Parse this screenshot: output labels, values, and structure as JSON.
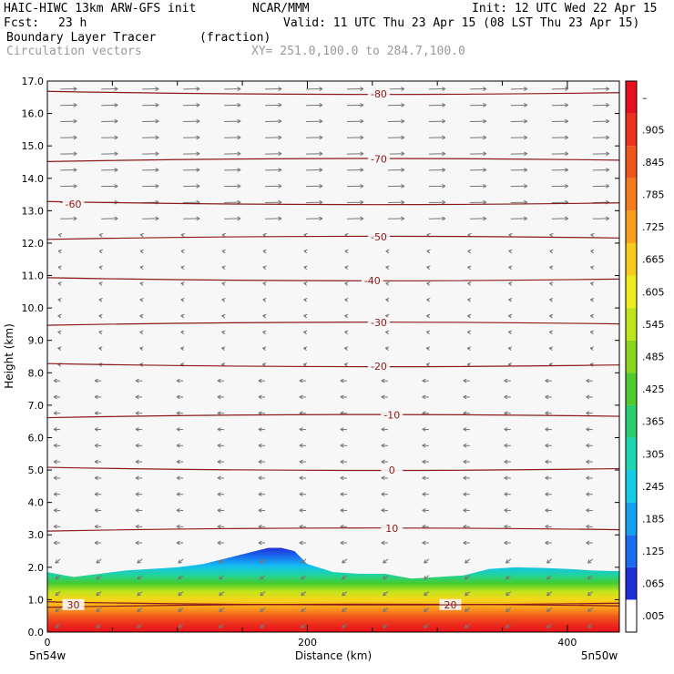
{
  "header": {
    "model": "HAIC-HIWC 13km ARW-GFS init",
    "org": "NCAR/MMM",
    "init": "Init: 12 UTC Wed 22 Apr 15",
    "fcst_label": "Fcst:",
    "fcst_value": "23 h",
    "valid": "Valid: 11 UTC Thu 23 Apr 15 (08 LST Thu 23 Apr 15)",
    "field": "Boundary Layer Tracer",
    "field_units": "(fraction)",
    "overlay": "Circulation vectors",
    "xy": "XY= 251.0,100.0 to 284.7,100.0"
  },
  "colors": {
    "contour": "#8b1a1a",
    "vector": "#777777",
    "text": "#000000",
    "grey_text": "#9a9a9a"
  },
  "chart_data": {
    "type": "heatmap",
    "xlabel": "Distance (km)",
    "ylabel": "Height (km)",
    "xlim": [
      0,
      440
    ],
    "ylim": [
      0,
      17
    ],
    "x_ticks": [
      "0",
      "200",
      "400"
    ],
    "x_tick_values": [
      0,
      200,
      400
    ],
    "x_end_labels": [
      "5n54w",
      "5n50w"
    ],
    "y_ticks": [
      "0.0",
      "1.0",
      "2.0",
      "3.0",
      "4.0",
      "5.0",
      "6.0",
      "7.0",
      "8.0",
      "9.0",
      "10.0",
      "11.0",
      "12.0",
      "13.0",
      "14.0",
      "15.0",
      "16.0",
      "17.0"
    ],
    "colorbar": {
      "labels": [
        ".005",
        ".065",
        ".125",
        ".185",
        ".245",
        ".305",
        ".365",
        ".425",
        ".485",
        ".545",
        ".605",
        ".665",
        ".725",
        ".785",
        ".845",
        ".905",
        "–"
      ],
      "colors": [
        "#ffffff",
        "#2030d8",
        "#1a6cf0",
        "#12a2f0",
        "#14cce6",
        "#1cd6b0",
        "#28cf6c",
        "#4ccb2a",
        "#8ad61c",
        "#c0e41a",
        "#eeec1e",
        "#f8cc1c",
        "#f8a01c",
        "#f47c1c",
        "#f0561c",
        "#ec321c",
        "#e8101c"
      ]
    },
    "temperature_contours": [
      {
        "label": "20",
        "x": 310,
        "y": 0.85
      },
      {
        "label": "30",
        "x": 20,
        "y": 0.85
      },
      {
        "label": "10",
        "x": 265,
        "y": 3.2
      },
      {
        "label": "0",
        "x": 265,
        "y": 5.0
      },
      {
        "label": "-10",
        "x": 265,
        "y": 6.7
      },
      {
        "label": "-20",
        "x": 255,
        "y": 8.2
      },
      {
        "label": "-30",
        "x": 255,
        "y": 9.55
      },
      {
        "label": "-40",
        "x": 250,
        "y": 10.85
      },
      {
        "label": "-50",
        "x": 255,
        "y": 12.2
      },
      {
        "label": "-60",
        "x": 20,
        "y": 13.2
      },
      {
        "label": "-70",
        "x": 255,
        "y": 14.6
      },
      {
        "label": "-80",
        "x": 255,
        "y": 16.6
      }
    ],
    "tracer_top_profile": {
      "x": [
        0,
        20,
        40,
        60,
        80,
        100,
        120,
        140,
        160,
        170,
        180,
        190,
        200,
        220,
        240,
        260,
        280,
        300,
        320,
        340,
        360,
        380,
        400,
        420,
        440
      ],
      "top_km": [
        1.85,
        1.7,
        1.8,
        1.9,
        1.95,
        2.0,
        2.1,
        2.3,
        2.5,
        2.6,
        2.6,
        2.5,
        2.1,
        1.85,
        1.8,
        1.8,
        1.65,
        1.7,
        1.75,
        1.95,
        2.0,
        1.98,
        1.95,
        1.9,
        1.88
      ]
    }
  }
}
